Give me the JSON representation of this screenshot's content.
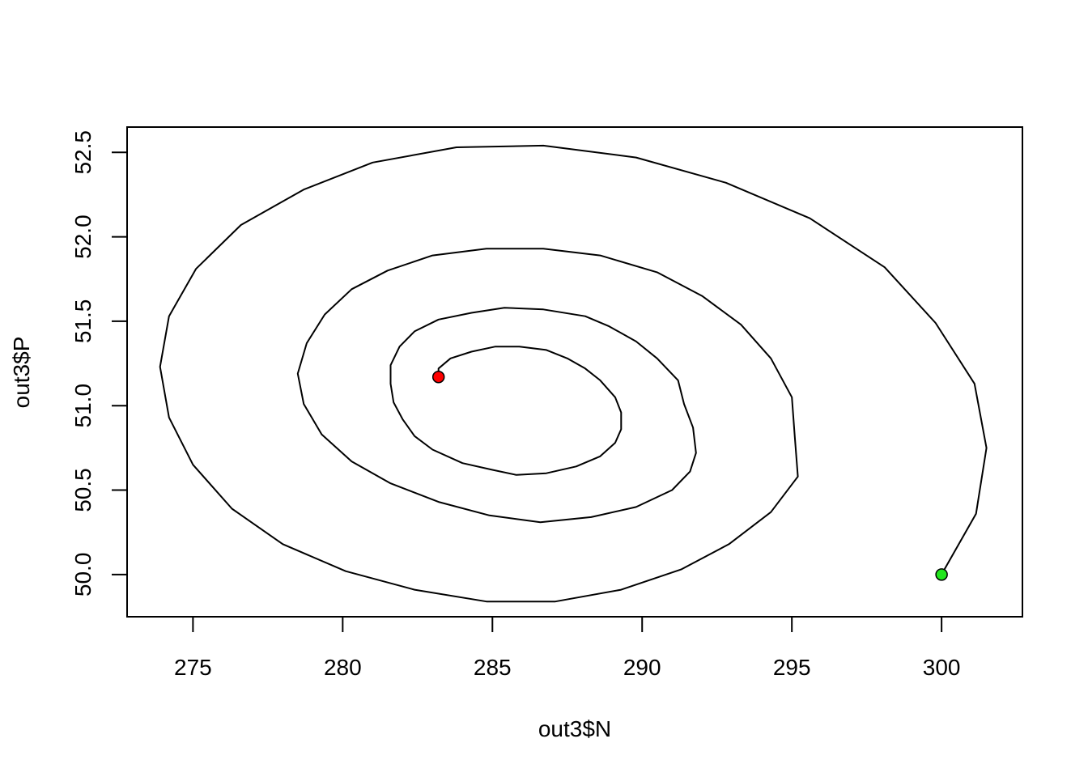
{
  "chart_data": {
    "type": "line",
    "title": "",
    "xlabel": "out3$N",
    "ylabel": "out3$P",
    "xlim": [
      272.8,
      302.7
    ],
    "ylim": [
      49.75,
      52.65
    ],
    "xticks": [
      275,
      280,
      285,
      290,
      295,
      300
    ],
    "yticks": [
      50.0,
      50.5,
      51.0,
      51.5,
      52.0,
      52.5
    ],
    "ytick_labels": [
      "50.0",
      "50.5",
      "51.0",
      "51.5",
      "52.0",
      "52.5"
    ],
    "grid": false,
    "series": [
      {
        "color": "#000000",
        "points": [
          [
            300.0,
            50.0
          ],
          [
            301.15,
            50.36
          ],
          [
            301.5,
            50.75
          ],
          [
            301.1,
            51.13
          ],
          [
            299.8,
            51.49
          ],
          [
            298.1,
            51.82
          ],
          [
            295.6,
            52.11
          ],
          [
            292.8,
            52.32
          ],
          [
            289.8,
            52.47
          ],
          [
            286.7,
            52.54
          ],
          [
            283.8,
            52.53
          ],
          [
            281.0,
            52.44
          ],
          [
            278.7,
            52.28
          ],
          [
            276.6,
            52.07
          ],
          [
            275.1,
            51.81
          ],
          [
            274.2,
            51.53
          ],
          [
            273.9,
            51.23
          ],
          [
            274.2,
            50.93
          ],
          [
            275.0,
            50.65
          ],
          [
            276.3,
            50.39
          ],
          [
            278.0,
            50.18
          ],
          [
            280.1,
            50.02
          ],
          [
            282.4,
            49.91
          ],
          [
            284.8,
            49.84
          ],
          [
            287.1,
            49.84
          ],
          [
            289.3,
            49.91
          ],
          [
            291.3,
            50.03
          ],
          [
            292.9,
            50.18
          ],
          [
            294.3,
            50.37
          ],
          [
            295.2,
            50.58
          ],
          [
            295.1,
            50.81
          ],
          [
            295.0,
            51.05
          ],
          [
            294.3,
            51.28
          ],
          [
            293.3,
            51.48
          ],
          [
            292.0,
            51.65
          ],
          [
            290.5,
            51.79
          ],
          [
            288.6,
            51.89
          ],
          [
            286.7,
            51.93
          ],
          [
            284.8,
            51.93
          ],
          [
            283.0,
            51.89
          ],
          [
            281.5,
            51.8
          ],
          [
            280.3,
            51.69
          ],
          [
            279.4,
            51.54
          ],
          [
            278.8,
            51.37
          ],
          [
            278.5,
            51.19
          ],
          [
            278.7,
            51.01
          ],
          [
            279.3,
            50.83
          ],
          [
            280.3,
            50.67
          ],
          [
            281.6,
            50.54
          ],
          [
            283.2,
            50.43
          ],
          [
            284.9,
            50.35
          ],
          [
            286.6,
            50.31
          ],
          [
            288.3,
            50.34
          ],
          [
            289.8,
            50.4
          ],
          [
            291.0,
            50.5
          ],
          [
            291.6,
            50.61
          ],
          [
            291.8,
            50.72
          ],
          [
            291.7,
            50.87
          ],
          [
            291.4,
            51.01
          ],
          [
            291.2,
            51.15
          ],
          [
            290.5,
            51.28
          ],
          [
            289.8,
            51.38
          ],
          [
            288.9,
            51.47
          ],
          [
            288.1,
            51.53
          ],
          [
            286.7,
            51.57
          ],
          [
            285.4,
            51.58
          ],
          [
            284.3,
            51.55
          ],
          [
            283.2,
            51.51
          ],
          [
            282.4,
            51.44
          ],
          [
            281.9,
            51.35
          ],
          [
            281.6,
            51.24
          ],
          [
            281.6,
            51.13
          ],
          [
            281.7,
            51.02
          ],
          [
            282.0,
            50.92
          ],
          [
            282.4,
            50.82
          ],
          [
            283.0,
            50.74
          ],
          [
            284.0,
            50.66
          ],
          [
            285.0,
            50.62
          ],
          [
            285.8,
            50.59
          ],
          [
            286.8,
            50.6
          ],
          [
            287.8,
            50.64
          ],
          [
            288.6,
            50.7
          ],
          [
            289.1,
            50.78
          ],
          [
            289.3,
            50.86
          ],
          [
            289.3,
            50.96
          ],
          [
            289.1,
            51.05
          ],
          [
            288.6,
            51.15
          ],
          [
            288.1,
            51.22
          ],
          [
            287.5,
            51.28
          ],
          [
            286.8,
            51.33
          ],
          [
            285.9,
            51.35
          ],
          [
            285.1,
            51.35
          ],
          [
            284.3,
            51.32
          ],
          [
            283.6,
            51.28
          ],
          [
            283.2,
            51.22
          ],
          [
            283.2,
            51.17
          ]
        ]
      }
    ],
    "markers": [
      {
        "x": 300.0,
        "y": 50.0,
        "color": "#22e61d"
      },
      {
        "x": 283.2,
        "y": 51.17,
        "color": "#ff0000"
      }
    ]
  }
}
